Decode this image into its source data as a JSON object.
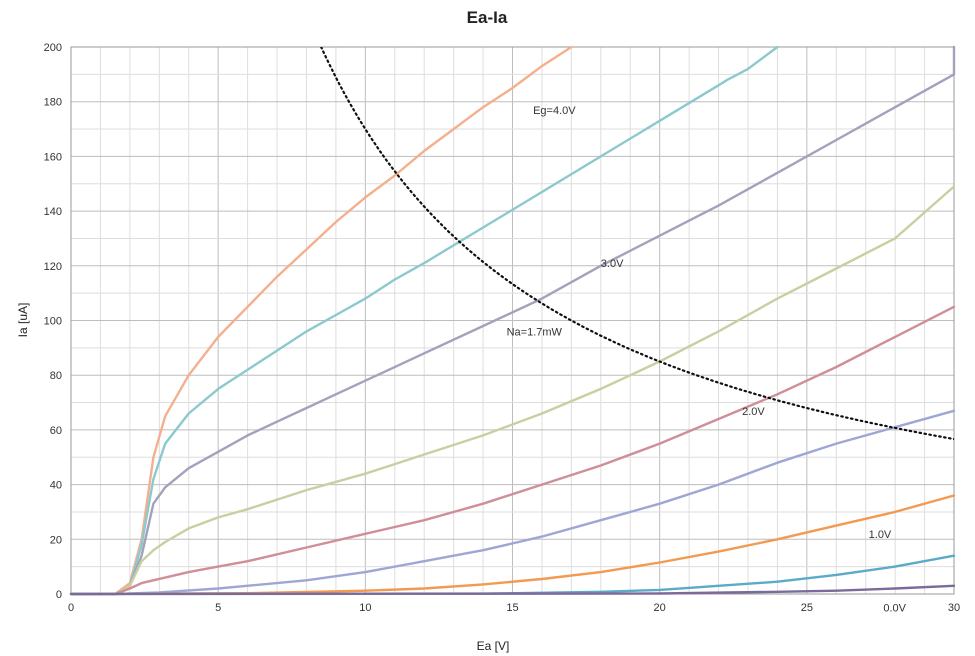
{
  "chart_data": {
    "type": "line",
    "title": "Ea-Ia",
    "xlabel": "Ea [V]",
    "ylabel": "Ia [uA]",
    "xlim": [
      0,
      30
    ],
    "ylim": [
      0,
      200
    ],
    "x_ticks": [
      0,
      5,
      10,
      15,
      20,
      25,
      30
    ],
    "y_ticks": [
      0,
      20,
      40,
      60,
      80,
      100,
      120,
      140,
      160,
      180,
      200
    ],
    "grid": true,
    "legend": "none",
    "series": [
      {
        "color": "#f4b08e",
        "points": [
          [
            0,
            0
          ],
          [
            1.5,
            0
          ],
          [
            2,
            4
          ],
          [
            2.4,
            20
          ],
          [
            2.8,
            50
          ],
          [
            3.2,
            65
          ],
          [
            4,
            80
          ],
          [
            5,
            94
          ],
          [
            6,
            105
          ],
          [
            7,
            116
          ],
          [
            8,
            126
          ],
          [
            9,
            136
          ],
          [
            10,
            145
          ],
          [
            11,
            153
          ],
          [
            12,
            162
          ],
          [
            13,
            170
          ],
          [
            14,
            178
          ],
          [
            15,
            185
          ],
          [
            16,
            193
          ],
          [
            17,
            200
          ]
        ]
      },
      {
        "color": "#8cc9cf",
        "points": [
          [
            0,
            0
          ],
          [
            1.5,
            0
          ],
          [
            2,
            3
          ],
          [
            2.4,
            18
          ],
          [
            2.8,
            42
          ],
          [
            3.2,
            55
          ],
          [
            4,
            66
          ],
          [
            5,
            75
          ],
          [
            6,
            82
          ],
          [
            7,
            89
          ],
          [
            8,
            96
          ],
          [
            9,
            102
          ],
          [
            10,
            108
          ],
          [
            11,
            115
          ],
          [
            12,
            121
          ],
          [
            14,
            134
          ],
          [
            16,
            147
          ],
          [
            18,
            160
          ],
          [
            20,
            173
          ],
          [
            22,
            186
          ],
          [
            22.3,
            188
          ],
          [
            23,
            192
          ],
          [
            24,
            200
          ]
        ]
      },
      {
        "color": "#a2a2bd",
        "points": [
          [
            0,
            0
          ],
          [
            1.5,
            0
          ],
          [
            2,
            3
          ],
          [
            2.4,
            14
          ],
          [
            2.8,
            33
          ],
          [
            3.2,
            39
          ],
          [
            4,
            46
          ],
          [
            5,
            52
          ],
          [
            6,
            58
          ],
          [
            7,
            63
          ],
          [
            8,
            68
          ],
          [
            9,
            73
          ],
          [
            10,
            78
          ],
          [
            12,
            88
          ],
          [
            14,
            98
          ],
          [
            16,
            108
          ],
          [
            18,
            120
          ],
          [
            20,
            131
          ],
          [
            22,
            142
          ],
          [
            24,
            154
          ],
          [
            26,
            166
          ],
          [
            28,
            178
          ],
          [
            30,
            190
          ],
          [
            30,
            200
          ]
        ]
      },
      {
        "color": "#c8cfa0",
        "points": [
          [
            0,
            0
          ],
          [
            1.5,
            0
          ],
          [
            2,
            3
          ],
          [
            2.4,
            12
          ],
          [
            2.8,
            16
          ],
          [
            3.2,
            19
          ],
          [
            4,
            24
          ],
          [
            5,
            28
          ],
          [
            6,
            31
          ],
          [
            8,
            38
          ],
          [
            10,
            44
          ],
          [
            12,
            51
          ],
          [
            14,
            58
          ],
          [
            16,
            66
          ],
          [
            18,
            75
          ],
          [
            20,
            85
          ],
          [
            22,
            96
          ],
          [
            24,
            108
          ],
          [
            26,
            119
          ],
          [
            28,
            130
          ],
          [
            30,
            149
          ]
        ]
      },
      {
        "color": "#cf8e98",
        "points": [
          [
            0,
            0
          ],
          [
            1.5,
            0
          ],
          [
            2,
            2
          ],
          [
            2.4,
            4
          ],
          [
            2.8,
            5
          ],
          [
            3.2,
            6
          ],
          [
            4,
            8
          ],
          [
            5,
            10
          ],
          [
            6,
            12
          ],
          [
            8,
            17
          ],
          [
            10,
            22
          ],
          [
            12,
            27
          ],
          [
            14,
            33
          ],
          [
            16,
            40
          ],
          [
            18,
            47
          ],
          [
            20,
            55
          ],
          [
            22,
            64
          ],
          [
            24,
            73
          ],
          [
            26,
            83
          ],
          [
            28,
            94
          ],
          [
            30,
            105
          ]
        ]
      },
      {
        "color": "#9ea7d3",
        "points": [
          [
            0,
            0
          ],
          [
            1.5,
            0
          ],
          [
            3,
            0.6
          ],
          [
            5,
            2
          ],
          [
            8,
            5
          ],
          [
            10,
            8
          ],
          [
            12,
            12
          ],
          [
            14,
            16
          ],
          [
            16,
            21
          ],
          [
            18,
            27
          ],
          [
            20,
            33
          ],
          [
            22,
            40
          ],
          [
            24,
            48
          ],
          [
            26,
            55
          ],
          [
            28,
            61
          ],
          [
            30,
            67
          ]
        ]
      },
      {
        "color": "#f29a52",
        "points": [
          [
            0,
            0
          ],
          [
            6,
            0.3
          ],
          [
            10,
            1.2
          ],
          [
            12,
            2
          ],
          [
            14,
            3.5
          ],
          [
            16,
            5.5
          ],
          [
            18,
            8
          ],
          [
            20,
            11.5
          ],
          [
            22,
            15.5
          ],
          [
            24,
            20
          ],
          [
            26,
            25
          ],
          [
            28,
            30
          ],
          [
            30,
            36
          ]
        ]
      },
      {
        "color": "#5aabc8",
        "points": [
          [
            0,
            0
          ],
          [
            14,
            0.1
          ],
          [
            18,
            0.8
          ],
          [
            20,
            1.5
          ],
          [
            22,
            3
          ],
          [
            24,
            4.5
          ],
          [
            26,
            7
          ],
          [
            28,
            10
          ],
          [
            30,
            14
          ]
        ]
      },
      {
        "color": "#7c6b9a",
        "points": [
          [
            0,
            0
          ],
          [
            20,
            0.2
          ],
          [
            24,
            0.8
          ],
          [
            26,
            1.2
          ],
          [
            28,
            2
          ],
          [
            30,
            3
          ]
        ]
      }
    ],
    "power_curve": {
      "label": "Na=1.7mW",
      "watts": 0.0017,
      "x_range": [
        8.5,
        30
      ]
    },
    "annotations": [
      {
        "text": "Eg=4.0V",
        "x": 15.7,
        "y": 177
      },
      {
        "text": "3.0V",
        "x": 18,
        "y": 121
      },
      {
        "text": "Na=1.7mW",
        "x": 14.8,
        "y": 96
      },
      {
        "text": "2.0V",
        "x": 22.8,
        "y": 67
      },
      {
        "text": "1.0V",
        "x": 27.1,
        "y": 22
      },
      {
        "text": "0.0V",
        "x": 27.6,
        "y": -5
      }
    ]
  }
}
